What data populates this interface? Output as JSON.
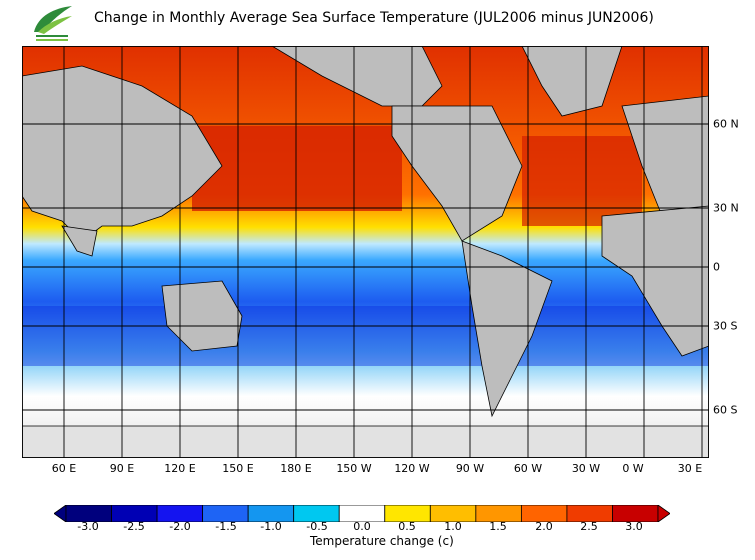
{
  "title": "Change in Monthly Average Sea Surface Temperature (JUL2006 minus JUN2006)",
  "logo": {
    "icon": "leaf-logo-icon",
    "colors": [
      "#2e8b3a",
      "#7cc242"
    ]
  },
  "map": {
    "land_color": "#bdbdbd",
    "ice_color": "#e2e2e2",
    "grid_color": "#000000",
    "longitude_labels": [
      "60 E",
      "90 E",
      "120 E",
      "150 E",
      "180 E",
      "150 W",
      "120 W",
      "90 W",
      "60 W",
      "30 W",
      "0 W",
      "30 E"
    ],
    "latitude_labels": [
      "60 N",
      "30 N",
      "0",
      "30 S",
      "60 S"
    ]
  },
  "colorbar": {
    "title": "Temperature change  (c)",
    "tick_labels": [
      "-3.0",
      "-2.5",
      "-2.0",
      "-1.5",
      "-1.0",
      "-0.5",
      "0.0",
      "0.5",
      "1.0",
      "1.5",
      "2.0",
      "2.5",
      "3.0"
    ],
    "colors": [
      "#00007d",
      "#0000b4",
      "#1414f0",
      "#1e64f5",
      "#1496f0",
      "#00c8f0",
      "#ffffff",
      "#ffe600",
      "#ffbe00",
      "#ff9600",
      "#ff6400",
      "#f03c00",
      "#c80000"
    ]
  }
}
